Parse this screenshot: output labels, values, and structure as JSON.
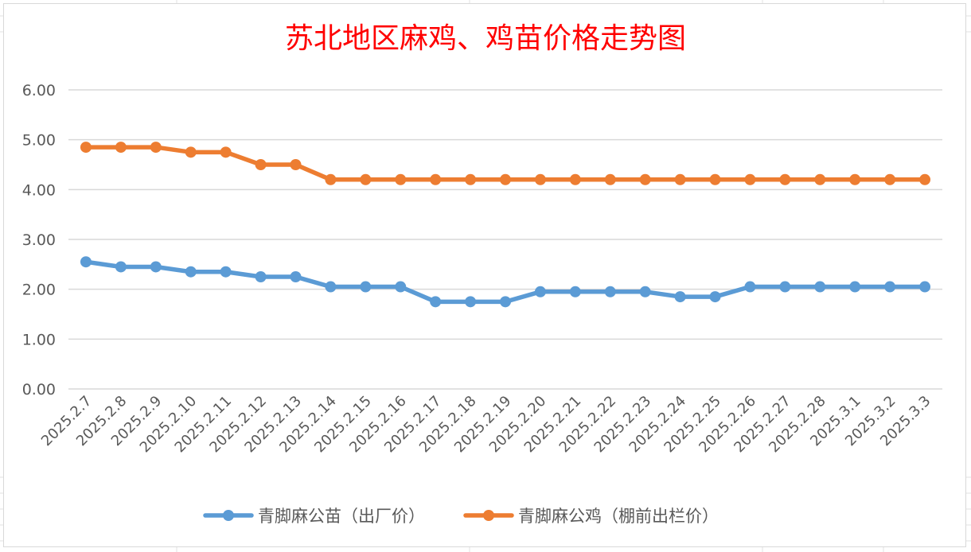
{
  "chart_data": {
    "type": "line",
    "title": "苏北地区麻鸡、鸡苗价格走势图",
    "xlabel": "",
    "ylabel": "",
    "ylim": [
      0,
      6
    ],
    "yticks": [
      "0.00",
      "1.00",
      "2.00",
      "3.00",
      "4.00",
      "5.00",
      "6.00"
    ],
    "grid": true,
    "legend_position": "bottom",
    "categories": [
      "2025.2.7",
      "2025.2.8",
      "2025.2.9",
      "2025.2.10",
      "2025.2.11",
      "2025.2.12",
      "2025.2.13",
      "2025.2.14",
      "2025.2.15",
      "2025.2.16",
      "2025.2.17",
      "2025.2.18",
      "2025.2.19",
      "2025.2.20",
      "2025.2.21",
      "2025.2.22",
      "2025.2.23",
      "2025.2.24",
      "2025.2.25",
      "2025.2.26",
      "2025.2.27",
      "2025.2.28",
      "2025.3.1",
      "2025.3.2",
      "2025.3.3"
    ],
    "series": [
      {
        "name": "青脚麻公苗（出厂价）",
        "color": "#5b9bd5",
        "values": [
          2.55,
          2.45,
          2.45,
          2.35,
          2.35,
          2.25,
          2.25,
          2.05,
          2.05,
          2.05,
          1.75,
          1.75,
          1.75,
          1.95,
          1.95,
          1.95,
          1.95,
          1.85,
          1.85,
          2.05,
          2.05,
          2.05,
          2.05,
          2.05,
          2.05
        ]
      },
      {
        "name": "青脚麻公鸡（棚前出栏价）",
        "color": "#ed7d31",
        "values": [
          4.85,
          4.85,
          4.85,
          4.75,
          4.75,
          4.5,
          4.5,
          4.2,
          4.2,
          4.2,
          4.2,
          4.2,
          4.2,
          4.2,
          4.2,
          4.2,
          4.2,
          4.2,
          4.2,
          4.2,
          4.2,
          4.2,
          4.2,
          4.2,
          4.2
        ]
      }
    ]
  }
}
